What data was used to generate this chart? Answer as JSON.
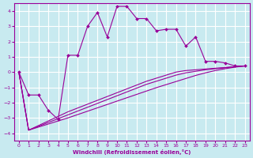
{
  "xlabel": "Windchill (Refroidissement éolien,°C)",
  "bg_color": "#c8eaf0",
  "grid_color": "#ffffff",
  "line_color": "#990099",
  "x_hours": [
    0,
    1,
    2,
    3,
    4,
    5,
    6,
    7,
    8,
    9,
    10,
    11,
    12,
    13,
    14,
    15,
    16,
    17,
    18,
    19,
    20,
    21,
    22,
    23
  ],
  "main_line": [
    0.0,
    -1.5,
    -1.5,
    -2.5,
    -3.1,
    1.1,
    1.1,
    3.0,
    3.9,
    2.3,
    4.3,
    4.3,
    3.5,
    3.5,
    2.7,
    2.8,
    2.8,
    1.7,
    2.3,
    0.7,
    0.7,
    0.6,
    0.4,
    0.4
  ],
  "straight_line1": [
    0.0,
    -3.8,
    -3.5,
    -3.2,
    -2.9,
    -2.6,
    -2.35,
    -2.1,
    -1.85,
    -1.6,
    -1.35,
    -1.1,
    -0.85,
    -0.6,
    -0.4,
    -0.2,
    0.0,
    0.1,
    0.15,
    0.2,
    0.25,
    0.3,
    0.35,
    0.4
  ],
  "straight_line2": [
    0.0,
    -3.8,
    -3.55,
    -3.3,
    -3.05,
    -2.8,
    -2.55,
    -2.3,
    -2.05,
    -1.8,
    -1.55,
    -1.3,
    -1.05,
    -0.8,
    -0.6,
    -0.4,
    -0.2,
    -0.05,
    0.05,
    0.15,
    0.22,
    0.28,
    0.35,
    0.4
  ],
  "straight_line3": [
    0.0,
    -3.8,
    -3.6,
    -3.4,
    -3.2,
    -3.0,
    -2.78,
    -2.56,
    -2.34,
    -2.12,
    -1.9,
    -1.68,
    -1.46,
    -1.24,
    -1.02,
    -0.82,
    -0.62,
    -0.42,
    -0.22,
    -0.05,
    0.1,
    0.22,
    0.32,
    0.4
  ],
  "ylim": [
    -4.5,
    4.5
  ],
  "xlim": [
    -0.5,
    23.5
  ],
  "yticks": [
    -4,
    -3,
    -2,
    -1,
    0,
    1,
    2,
    3,
    4
  ],
  "xticks": [
    0,
    1,
    2,
    3,
    4,
    5,
    6,
    7,
    8,
    9,
    10,
    11,
    12,
    13,
    14,
    15,
    16,
    17,
    18,
    19,
    20,
    21,
    22,
    23
  ]
}
